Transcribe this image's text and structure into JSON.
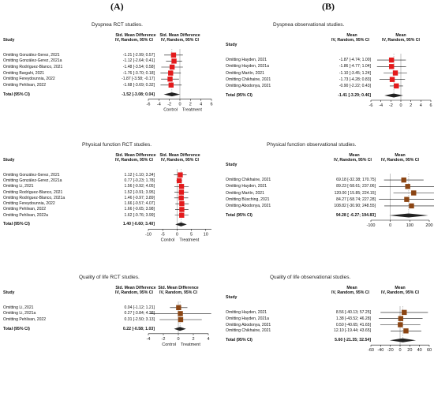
{
  "figure": {
    "label_a": "(A)",
    "label_b": "(B)"
  },
  "chart_data": [
    {
      "type": "forest",
      "title": "Dyspnea RCT studies.",
      "col_study": "Study",
      "col_effect": "Std. Mean Difference",
      "col_method": "IV, Random, 95% CI",
      "studies": [
        {
          "label": "Omitting González-Gerez, 2021",
          "est": -1.21,
          "lo": -2.99,
          "hi": 0.57,
          "ci_text": "-1.21 [-2.99; 0.57]"
        },
        {
          "label": "Omitting González-Gerez, 2021a",
          "est": -1.12,
          "lo": -2.64,
          "hi": 0.41,
          "ci_text": "-1.12 [-2.64; 0.41]"
        },
        {
          "label": "Omitting Rodríguez-Blanco, 2021",
          "est": -1.48,
          "lo": -3.54,
          "hi": 0.58,
          "ci_text": "-1.48 [-3.54; 0.58]"
        },
        {
          "label": "Omitting Bargahi, 2021",
          "est": -1.76,
          "lo": -3.7,
          "hi": 0.18,
          "ci_text": "-1.76 [-3.70; 0.18]"
        },
        {
          "label": "Omitting Fereydounnia, 2022",
          "est": -1.87,
          "lo": -3.58,
          "hi": -0.17,
          "ci_text": "-1.87 [-3.58; -0.17]"
        },
        {
          "label": "Omitting Pehlivan, 2022",
          "est": -1.68,
          "lo": -3.69,
          "hi": 0.32,
          "ci_text": "-1.68 [-3.69; 0.32]"
        }
      ],
      "total": {
        "label": "Total (95% CI)",
        "est": -1.52,
        "lo": -3.08,
        "hi": 0.04,
        "ci_text": "-1.52 [-3.08; 0.04]"
      },
      "xlim": [
        -6,
        6
      ],
      "ticks": [
        -6,
        -4,
        -2,
        0,
        2,
        4,
        6
      ],
      "xlabel_left": "Control",
      "xlabel_right": "Treatment"
    },
    {
      "type": "forest",
      "title": "Dyspnea observational studies.",
      "col_study": "Study",
      "col_effect": "Mean",
      "col_method": "IV, Random, 95% CI",
      "studies": [
        {
          "label": "Omitting Hayden, 2021",
          "est": -1.87,
          "lo": -4.74,
          "hi": 1.0,
          "ci_text": "-1.87 [-4.74; 1.00]"
        },
        {
          "label": "Omitting Hayden, 2021a",
          "est": -1.86,
          "lo": -4.77,
          "hi": 1.04,
          "ci_text": "-1.86 [-4.77; 1.04]"
        },
        {
          "label": "Omitting Martín, 2021",
          "est": -1.1,
          "lo": -3.45,
          "hi": 1.24,
          "ci_text": "-1.10 [-3.45; 1.24]"
        },
        {
          "label": "Omitting Chikhaine, 2021",
          "est": -1.73,
          "lo": -4.28,
          "hi": 0.83,
          "ci_text": "-1.73 [-4.28; 0.83]"
        },
        {
          "label": "Omitting Abodonya, 2021",
          "est": -0.9,
          "lo": -2.22,
          "hi": 0.43,
          "ci_text": "-0.90 [-2.22; 0.43]"
        }
      ],
      "total": {
        "label": "Total (95% CI)",
        "est": -1.41,
        "lo": -3.29,
        "hi": 0.46,
        "ci_text": "-1.41 [-3.29; 0.46]"
      },
      "xlim": [
        -6,
        6
      ],
      "ticks": [
        -6,
        -4,
        -2,
        0,
        2,
        4,
        6
      ],
      "xlabel_left": "",
      "xlabel_right": ""
    },
    {
      "type": "forest",
      "title": "Physical function RCT studies.",
      "col_study": "Study",
      "col_effect": "Std. Mean Difference",
      "col_method": "IV, Random, 95% CI",
      "studies": [
        {
          "label": "Omitting González-Gerez, 2021",
          "est": 1.12,
          "lo": -1.1,
          "hi": 3.34,
          "ci_text": "1.12 [-1.10; 3.34]"
        },
        {
          "label": "Omitting González-Gerez, 2021a",
          "est": 0.77,
          "lo": -0.23,
          "hi": 1.78,
          "ci_text": "0.77 [-0.23; 1.78]"
        },
        {
          "label": "Omitting Li, 2021",
          "est": 1.56,
          "lo": -0.92,
          "hi": 4.05,
          "ci_text": "1.56 [-0.92; 4.05]"
        },
        {
          "label": "Omitting Rodríguez-Blanco, 2021",
          "est": 1.52,
          "lo": -0.91,
          "hi": 3.95,
          "ci_text": "1.52 [-0.91; 3.95]"
        },
        {
          "label": "Omitting Rodríguez-Blanco, 2021a",
          "est": 1.46,
          "lo": -0.97,
          "hi": 3.89,
          "ci_text": "1.46 [-0.97; 3.89]"
        },
        {
          "label": "Omitting Fereydounnia, 2022",
          "est": 1.66,
          "lo": -0.57,
          "hi": 4.07,
          "ci_text": "1.66 [-0.57; 4.07]"
        },
        {
          "label": "Omitting Pehlivan, 2022",
          "est": 1.66,
          "lo": -0.65,
          "hi": 3.98,
          "ci_text": "1.66 [-0.65; 3.98]"
        },
        {
          "label": "Omitting Pehlivan, 2022a",
          "est": 1.62,
          "lo": -0.76,
          "hi": 3.99,
          "ci_text": "1.62 [-0.76; 3.99]"
        }
      ],
      "total": {
        "label": "Total (95% CI)",
        "est": 1.4,
        "lo": -0.6,
        "hi": 3.4,
        "ci_text": "1.40 [-0.60; 3.40]"
      },
      "xlim": [
        -10,
        12
      ],
      "ticks": [
        -10,
        -5,
        0,
        5,
        10
      ],
      "xlabel_left": "Control",
      "xlabel_right": "Treatment"
    },
    {
      "type": "forest",
      "title": "Physical function observational studies.",
      "col_study": "Study",
      "col_effect": "Mean",
      "col_method": "IV, Random, 95% CI",
      "studies": [
        {
          "label": "Omitting Chikhaine, 2021",
          "est": 69.18,
          "lo": -32.38,
          "hi": 170.75,
          "ci_text": "69.18 [-32.38; 170.75]"
        },
        {
          "label": "Omitting Hayden, 2021",
          "est": 89.23,
          "lo": -58.61,
          "hi": 237.06,
          "ci_text": "89.23 [-58.61; 237.06]"
        },
        {
          "label": "Omitting Martín, 2021",
          "est": 120.0,
          "lo": 15.85,
          "hi": 224.15,
          "ci_text": "120.00 [ 15.85; 224.15]"
        },
        {
          "label": "Omitting Büsching, 2021",
          "est": 84.27,
          "lo": -58.74,
          "hi": 227.28,
          "ci_text": "84.27 [-58.74; 227.28]"
        },
        {
          "label": "Omitting Abodonya, 2021",
          "est": 108.82,
          "lo": -30.9,
          "hi": 248.55,
          "ci_text": "108.82 [-30.90; 248.55]"
        }
      ],
      "total": {
        "label": "Total (95% CI)",
        "est": 94.28,
        "lo": -6.27,
        "hi": 194.83,
        "ci_text": "94.28 [ -6.27; 194.83]"
      },
      "xlim": [
        -100,
        200
      ],
      "ticks": [
        -100,
        0,
        100,
        200
      ],
      "xlabel_left": "",
      "xlabel_right": ""
    },
    {
      "type": "forest",
      "title": "Quality of life RCT studies.",
      "col_study": "Study",
      "col_effect": "Std. Mean Difference",
      "col_method": "IV, Random, 95% CI",
      "studies": [
        {
          "label": "Omitting Li, 2021",
          "est": 0.04,
          "lo": -1.12,
          "hi": 1.21,
          "ci_text": "0.04 [-1.12; 1.21]"
        },
        {
          "label": "Omitting Li, 2021a",
          "est": 0.27,
          "lo": -3.84,
          "hi": 4.38,
          "ci_text": "0.27 [-3.84; 4.38]"
        },
        {
          "label": "Omitting Pehlivan, 2022",
          "est": 0.31,
          "lo": -2.5,
          "hi": 3.13,
          "ci_text": "0.31 [-2.50; 3.13]"
        }
      ],
      "total": {
        "label": "Total (95% CI)",
        "est": 0.22,
        "lo": -0.58,
        "hi": 1.03,
        "ci_text": "0.22 [-0.58; 1.03]"
      },
      "xlim": [
        -4,
        4
      ],
      "ticks": [
        -4,
        -2,
        0,
        2,
        4
      ],
      "xlabel_left": "Control",
      "xlabel_right": "Treatment"
    },
    {
      "type": "forest",
      "title": "Quality of life observational studies.",
      "col_study": "Study",
      "col_effect": "Mean",
      "col_method": "IV, Random, 95% CI",
      "studies": [
        {
          "label": "Omitting Hayden, 2021",
          "est": 8.56,
          "lo": -40.13,
          "hi": 57.25,
          "ci_text": "8.56 [-40.13; 57.25]"
        },
        {
          "label": "Omitting Hayden, 2021a",
          "est": 1.38,
          "lo": -43.52,
          "hi": 46.28,
          "ci_text": "1.38 [-43.52; 46.28]"
        },
        {
          "label": "Omitting Abodonya, 2021",
          "est": 0.5,
          "lo": -40.65,
          "hi": 41.65,
          "ci_text": "0.50 [-40.65; 41.65]"
        },
        {
          "label": "Omitting Chikhaine, 2021",
          "est": 12.1,
          "lo": -19.44,
          "hi": 43.65,
          "ci_text": "12.10 [-19.44; 43.65]"
        }
      ],
      "total": {
        "label": "Total (95% CI)",
        "est": 5.6,
        "lo": -21.35,
        "hi": 32.54,
        "ci_text": "5.60 [-21.35; 32.54]"
      },
      "xlim": [
        -60,
        60
      ],
      "ticks": [
        -60,
        -40,
        -20,
        0,
        20,
        40,
        60
      ],
      "xlabel_left": "",
      "xlabel_right": ""
    }
  ]
}
